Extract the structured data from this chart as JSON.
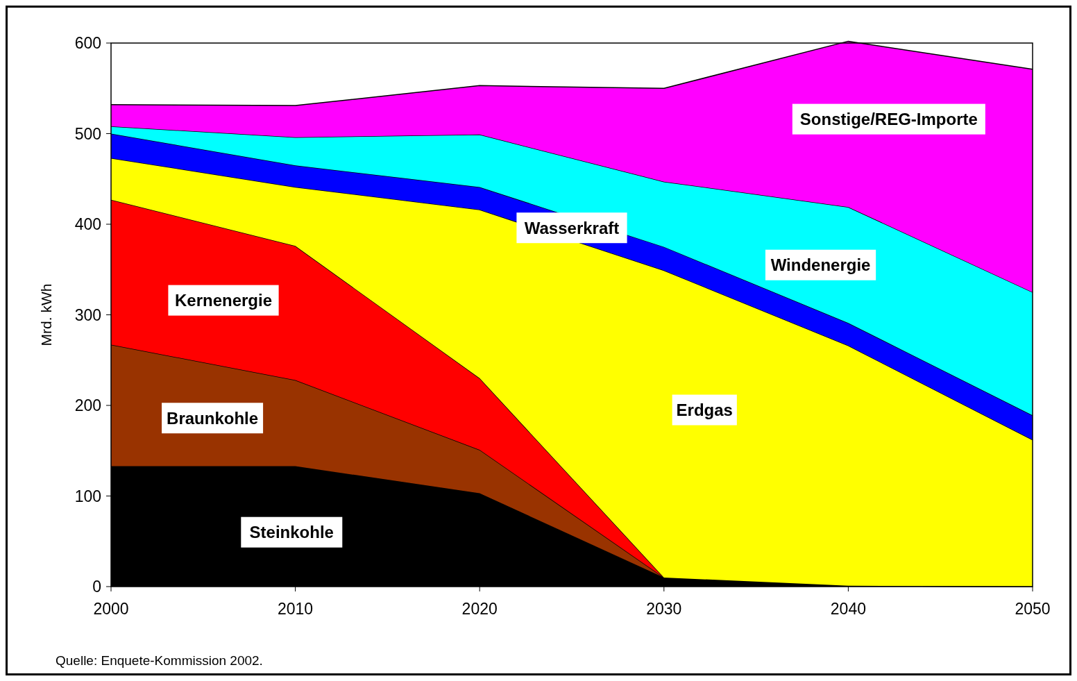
{
  "chart_data": {
    "type": "area",
    "stacked": true,
    "ylabel": "Mrd. kWh",
    "x": [
      2000,
      2010,
      2020,
      2030,
      2040,
      2050
    ],
    "xlim": [
      2000,
      2050
    ],
    "xticks": [
      2000,
      2010,
      2020,
      2030,
      2040,
      2050
    ],
    "ylim": [
      0,
      600
    ],
    "yticks": [
      0,
      100,
      200,
      300,
      400,
      500,
      600
    ],
    "grid": false,
    "series": [
      {
        "name": "Steinkohle",
        "color": "#000000",
        "values": [
          133,
          133,
          103,
          10,
          1,
          0
        ]
      },
      {
        "name": "Braunkohle",
        "color": "#993300",
        "values": [
          134,
          95,
          48,
          0,
          0,
          0
        ]
      },
      {
        "name": "Kernenergie",
        "color": "#ff0000",
        "values": [
          160,
          148,
          79,
          0,
          0,
          0
        ]
      },
      {
        "name": "Erdgas",
        "color": "#ffff00",
        "values": [
          46,
          65,
          186,
          339,
          265,
          162
        ]
      },
      {
        "name": "Wasserkraft",
        "color": "#0000ff",
        "values": [
          27,
          24,
          25,
          26,
          25,
          27
        ]
      },
      {
        "name": "Windenergie",
        "color": "#00ffff",
        "values": [
          8,
          31,
          58,
          72,
          128,
          136
        ]
      },
      {
        "name": "Sonstige/REG-Importe",
        "color": "#ff00ff",
        "values": [
          24,
          35,
          54,
          103,
          183,
          246
        ]
      }
    ],
    "annotations": [
      "Quelle: Enquete-Kommission 2002."
    ]
  }
}
